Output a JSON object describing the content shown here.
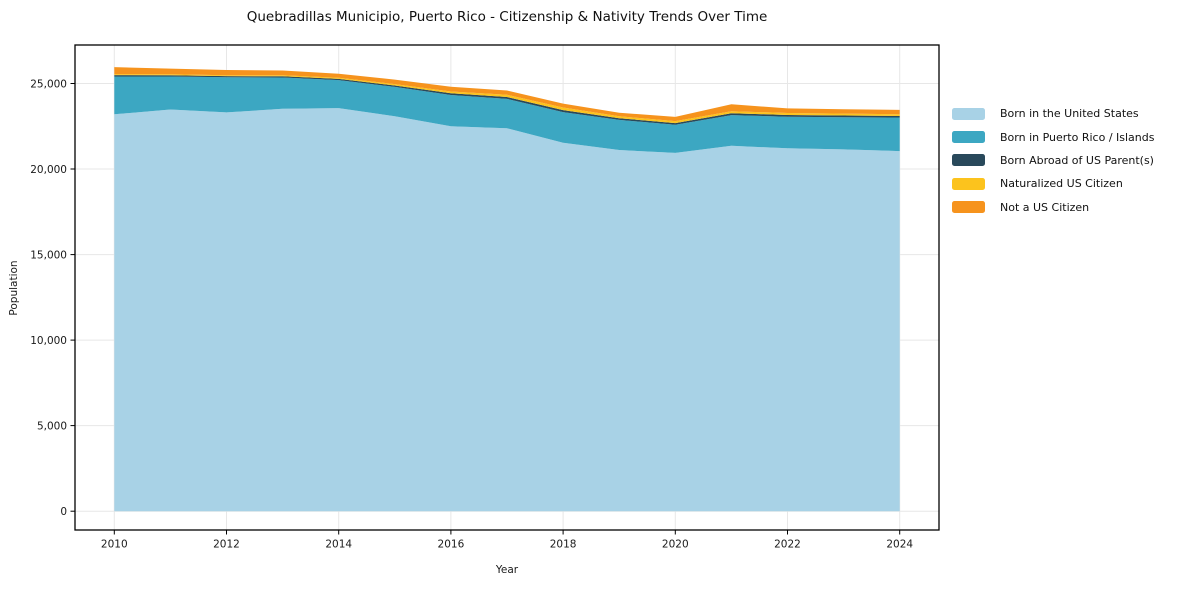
{
  "figure": {
    "title": "Quebradillas Municipio, Puerto Rico - Citizenship & Nativity Trends Over Time",
    "xlabel": "Year",
    "ylabel": "Population"
  },
  "chart_data": {
    "type": "area",
    "stacked": true,
    "title": "Quebradillas Municipio, Puerto Rico - Citizenship & Nativity Trends Over Time",
    "xlabel": "Year",
    "ylabel": "Population",
    "x": [
      2010,
      2011,
      2012,
      2013,
      2014,
      2015,
      2016,
      2017,
      2018,
      2019,
      2020,
      2021,
      2022,
      2023,
      2024
    ],
    "series": [
      {
        "name": "Born in the United States",
        "color": "#a8d2e6",
        "values": [
          23200,
          23480,
          23310,
          23520,
          23560,
          23080,
          22500,
          22380,
          21540,
          21110,
          20940,
          21360,
          21210,
          21150,
          21050
        ]
      },
      {
        "name": "Born in Puerto Rico / Islands",
        "color": "#3ca7c2",
        "values": [
          2210,
          1930,
          2050,
          1830,
          1640,
          1720,
          1830,
          1720,
          1790,
          1760,
          1650,
          1790,
          1850,
          1880,
          1960
        ]
      },
      {
        "name": "Born Abroad of US Parent(s)",
        "color": "#29495b",
        "values": [
          80,
          75,
          70,
          70,
          70,
          80,
          95,
          110,
          115,
          100,
          95,
          115,
          100,
          100,
          90
        ]
      },
      {
        "name": "Naturalized US Citizen",
        "color": "#fcc31d",
        "values": [
          60,
          55,
          55,
          60,
          65,
          85,
          105,
          130,
          150,
          115,
          115,
          115,
          115,
          112,
          105
        ]
      },
      {
        "name": "Not a US Citizen",
        "color": "#f6931d",
        "values": [
          410,
          330,
          305,
          280,
          240,
          260,
          280,
          250,
          230,
          210,
          250,
          410,
          270,
          255,
          250
        ]
      }
    ],
    "xticks": {
      "values": [
        2010,
        2012,
        2014,
        2016,
        2018,
        2020,
        2022,
        2024
      ],
      "labels": [
        "2010",
        "2012",
        "2014",
        "2016",
        "2018",
        "2020",
        "2022",
        "2024"
      ]
    },
    "yticks": {
      "values": [
        0,
        5000,
        10000,
        15000,
        20000,
        25000
      ],
      "labels": [
        "0",
        "5,000",
        "10,000",
        "15,000",
        "20,000",
        "25,000"
      ]
    },
    "xlim": [
      2009.3,
      2024.7
    ],
    "ylim": [
      -1100,
      27250
    ],
    "grid": true,
    "legend_position": "right"
  }
}
